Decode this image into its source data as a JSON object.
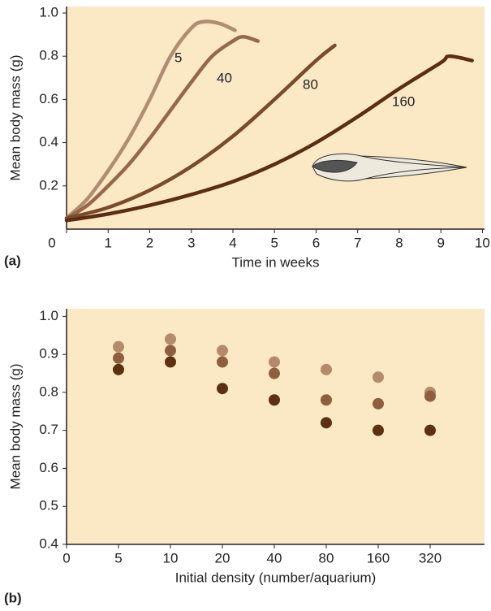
{
  "chart_data": [
    {
      "type": "line",
      "panel_label": "(a)",
      "x_label": "Time in weeks",
      "y_label": "Mean body mass (g)",
      "xlim": [
        0,
        10.05
      ],
      "ylim": [
        0,
        1.03
      ],
      "xticks": [
        0,
        1,
        2,
        3,
        4,
        5,
        6,
        7,
        8,
        9,
        10
      ],
      "yticks": [
        0.2,
        0.4,
        0.6,
        0.8,
        {
          "value": 1,
          "label": "1.0"
        }
      ],
      "series": [
        {
          "name": "5",
          "color": "#b08d72",
          "x": [
            0,
            0.5,
            1,
            1.5,
            2,
            2.5,
            3,
            3.3,
            3.7,
            4.05
          ],
          "values": [
            0.05,
            0.14,
            0.27,
            0.42,
            0.6,
            0.8,
            0.93,
            0.96,
            0.95,
            0.92
          ]
        },
        {
          "name": "40",
          "color": "#96674a",
          "x": [
            0,
            0.5,
            1,
            1.5,
            2,
            2.5,
            3,
            3.5,
            4,
            4.25,
            4.6
          ],
          "values": [
            0.05,
            0.11,
            0.2,
            0.3,
            0.42,
            0.55,
            0.68,
            0.8,
            0.87,
            0.89,
            0.87
          ]
        },
        {
          "name": "80",
          "color": "#7a4a2c",
          "x": [
            0,
            1,
            2,
            3,
            4,
            5,
            6,
            6.45
          ],
          "values": [
            0.05,
            0.1,
            0.18,
            0.29,
            0.43,
            0.6,
            0.78,
            0.85
          ]
        },
        {
          "name": "160",
          "color": "#5a2e14",
          "x": [
            0,
            1,
            2,
            3,
            4,
            5,
            6,
            7,
            8,
            9,
            9.2,
            9.75
          ],
          "values": [
            0.04,
            0.07,
            0.11,
            0.16,
            0.22,
            0.3,
            0.4,
            0.52,
            0.65,
            0.77,
            0.8,
            0.78
          ]
        }
      ]
    },
    {
      "type": "scatter",
      "panel_label": "(b)",
      "x_label": "Initial density (number/aquarium)",
      "y_label": "Mean body mass (g)",
      "categories": [
        "0",
        "5",
        "10",
        "20",
        "40",
        "80",
        "160",
        "320"
      ],
      "ylim": [
        0.4,
        1.02
      ],
      "yticks": [
        0.4,
        0.5,
        0.6,
        0.7,
        0.8,
        0.9,
        {
          "value": 1,
          "label": "1.0"
        }
      ],
      "series": [
        {
          "color": "#b58a6c",
          "values": [
            null,
            0.92,
            0.94,
            0.91,
            0.88,
            0.86,
            0.84,
            0.8
          ]
        },
        {
          "color": "#8d5e3f",
          "values": [
            null,
            0.89,
            0.91,
            0.88,
            0.85,
            0.78,
            0.77,
            0.79
          ]
        },
        {
          "color": "#5c3012",
          "values": [
            null,
            0.86,
            0.88,
            0.81,
            0.78,
            0.72,
            0.7,
            0.7
          ]
        }
      ]
    }
  ]
}
